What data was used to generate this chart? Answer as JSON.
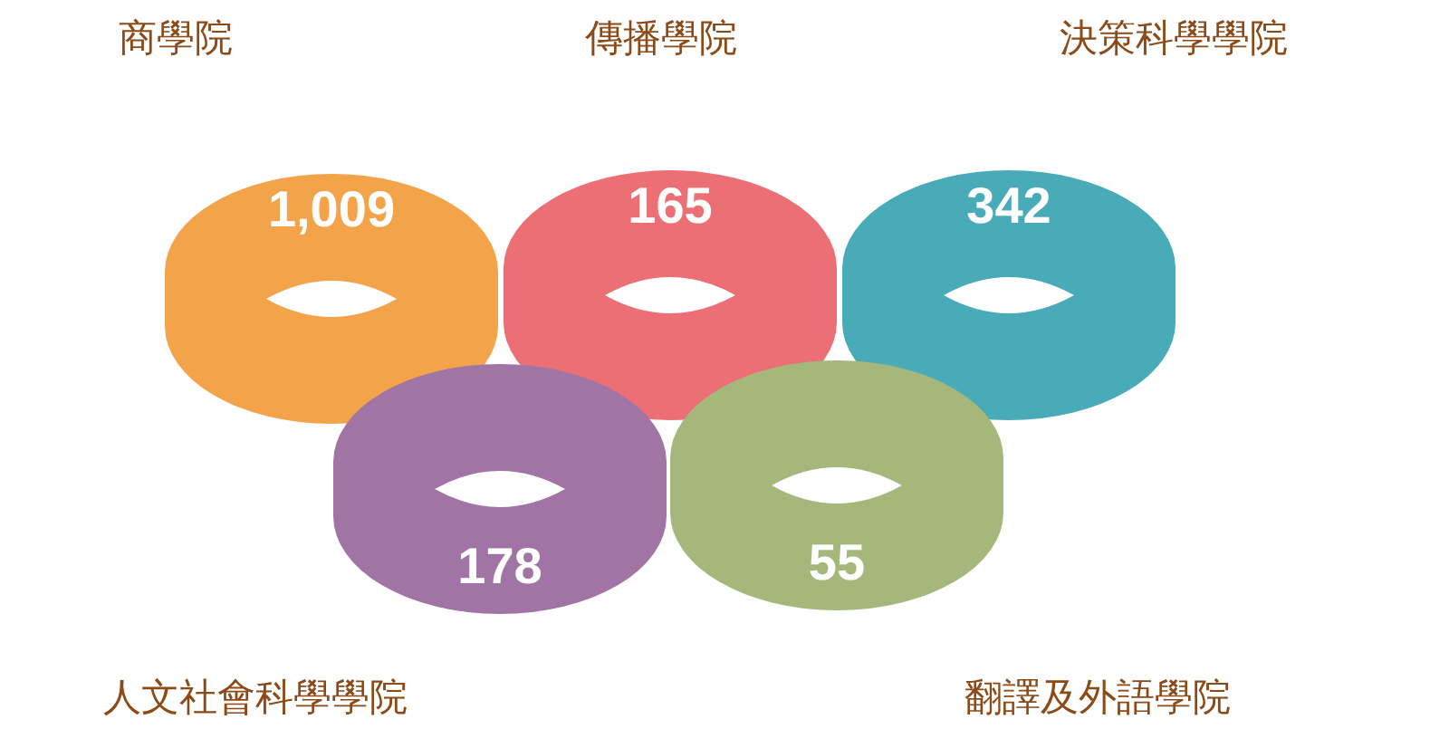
{
  "chart_data": {
    "type": "other",
    "categories": [
      "商學院",
      "傳播學院",
      "決策科學學院",
      "人文社會科學學院",
      "翻譯及外語學院"
    ],
    "values": [
      1009,
      165,
      342,
      178,
      55
    ],
    "value_labels": [
      "1,009",
      "165",
      "342",
      "178",
      "55"
    ],
    "colors": [
      "#f3a44b",
      "#eb6f75",
      "#49abb8",
      "#a074a5",
      "#a5b77a"
    ]
  }
}
